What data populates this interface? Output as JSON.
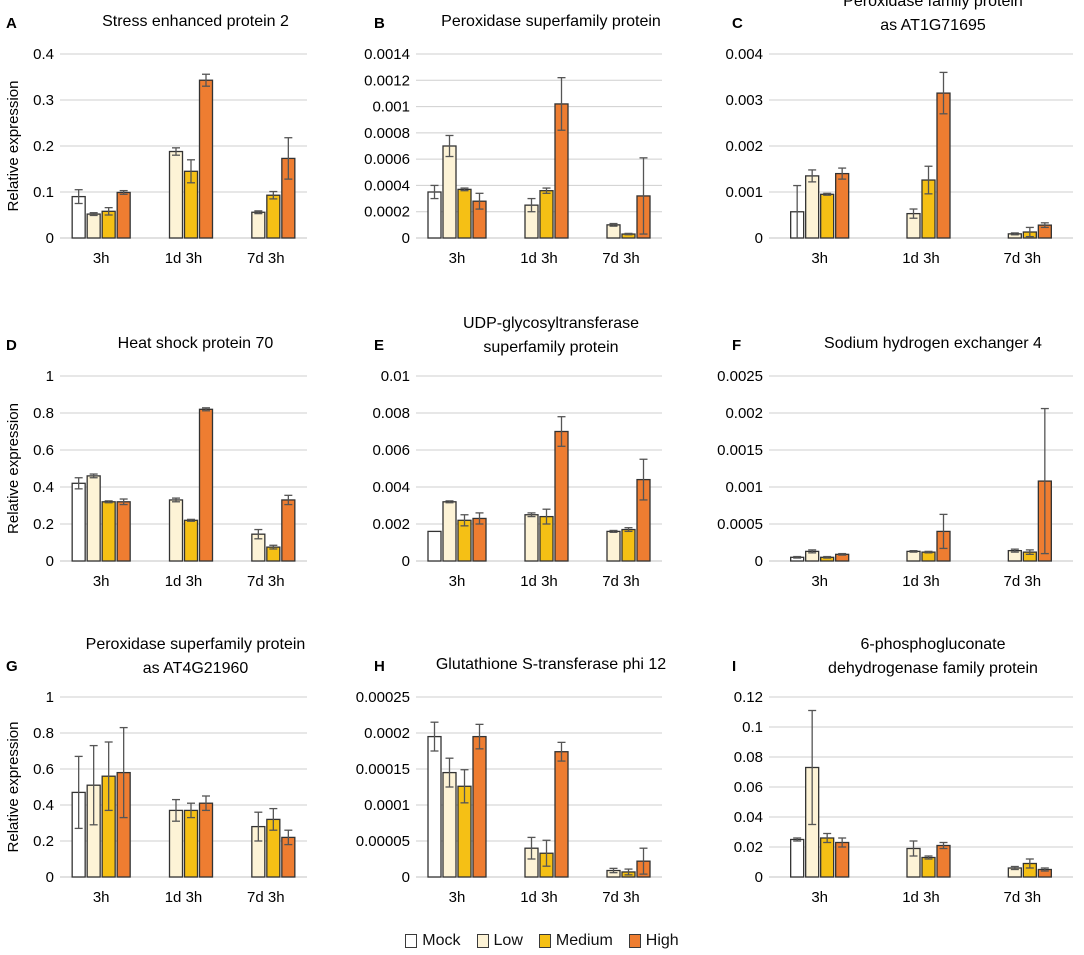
{
  "series_styles": [
    {
      "name": "Mock",
      "color": "#ffffff"
    },
    {
      "name": "Low",
      "color": "#fdf3d6"
    },
    {
      "name": "Medium",
      "color": "#f5c015"
    },
    {
      "name": "High",
      "color": "#ee7d31"
    }
  ],
  "axis_color": "#cfcfcf",
  "bar_stroke": "#333333",
  "legend": [
    "Mock",
    "Low",
    "Medium",
    "High"
  ],
  "chart_data": [
    {
      "type": "bar",
      "letter": "A",
      "title": [
        "Stress enhanced protein 2"
      ],
      "ylabel": "Relative expression",
      "categories": [
        "3h",
        "1d 3h",
        "7d 3h"
      ],
      "yticks": [
        "0",
        "0.1",
        "0.2",
        "0.3",
        "0.4"
      ],
      "ylim": [
        0,
        0.4
      ],
      "series": [
        {
          "name": "Mock",
          "values": [
            0.09,
            null,
            null
          ],
          "errors": [
            0.015,
            null,
            null
          ]
        },
        {
          "name": "Low",
          "values": [
            0.052,
            0.188,
            0.056
          ],
          "errors": [
            0.003,
            0.008,
            0.003
          ]
        },
        {
          "name": "Medium",
          "values": [
            0.058,
            0.145,
            0.093
          ],
          "errors": [
            0.008,
            0.025,
            0.008
          ]
        },
        {
          "name": "High",
          "values": [
            0.099,
            0.343,
            0.173
          ],
          "errors": [
            0.004,
            0.013,
            0.045
          ]
        }
      ]
    },
    {
      "type": "bar",
      "letter": "B",
      "title": [
        "Peroxidase superfamily protein"
      ],
      "ylabel": "",
      "categories": [
        "3h",
        "1d 3h",
        "7d 3h"
      ],
      "yticks": [
        "0",
        "0.0002",
        "0.0004",
        "0.0006",
        "0.0008",
        "0.001",
        "0.0012",
        "0.0014"
      ],
      "ylim": [
        0,
        0.0014
      ],
      "series": [
        {
          "name": "Mock",
          "values": [
            0.00035,
            null,
            null
          ],
          "errors": [
            5e-05,
            null,
            null
          ]
        },
        {
          "name": "Low",
          "values": [
            0.0007,
            0.00025,
            0.0001
          ],
          "errors": [
            8e-05,
            5e-05,
            1e-05
          ]
        },
        {
          "name": "Medium",
          "values": [
            0.00037,
            0.00036,
            3e-05
          ],
          "errors": [
            1e-05,
            2e-05,
            5e-06
          ]
        },
        {
          "name": "High",
          "values": [
            0.00028,
            0.00102,
            0.00032
          ],
          "errors": [
            6e-05,
            0.0002,
            0.00029
          ]
        }
      ]
    },
    {
      "type": "bar",
      "letter": "C",
      "title": [
        "Peroxidase family protein",
        "as AT1G71695"
      ],
      "ylabel": "",
      "categories": [
        "3h",
        "1d 3h",
        "7d 3h"
      ],
      "yticks": [
        "0",
        "0.001",
        "0.002",
        "0.003",
        "0.004"
      ],
      "ylim": [
        0,
        0.004
      ],
      "series": [
        {
          "name": "Mock",
          "values": [
            0.00057,
            null,
            null
          ],
          "errors": [
            0.00057,
            null,
            null
          ]
        },
        {
          "name": "Low",
          "values": [
            0.00135,
            0.00053,
            9e-05
          ],
          "errors": [
            0.00013,
            0.0001,
            2e-05
          ]
        },
        {
          "name": "Medium",
          "values": [
            0.00095,
            0.00126,
            0.00013
          ],
          "errors": [
            2e-05,
            0.0003,
            0.0001
          ]
        },
        {
          "name": "High",
          "values": [
            0.0014,
            0.00315,
            0.00028
          ],
          "errors": [
            0.00012,
            0.00045,
            5e-05
          ]
        }
      ]
    },
    {
      "type": "bar",
      "letter": "D",
      "title": [
        "Heat shock protein 70"
      ],
      "ylabel": "Relative expression",
      "categories": [
        "3h",
        "1d 3h",
        "7d 3h"
      ],
      "yticks": [
        "0",
        "0.2",
        "0.4",
        "0.6",
        "0.8",
        "1"
      ],
      "ylim": [
        0,
        1
      ],
      "series": [
        {
          "name": "Mock",
          "values": [
            0.42,
            null,
            null
          ],
          "errors": [
            0.03,
            null,
            null
          ]
        },
        {
          "name": "Low",
          "values": [
            0.46,
            0.33,
            0.145
          ],
          "errors": [
            0.01,
            0.01,
            0.025
          ]
        },
        {
          "name": "Medium",
          "values": [
            0.32,
            0.22,
            0.075
          ],
          "errors": [
            0.005,
            0.005,
            0.01
          ]
        },
        {
          "name": "High",
          "values": [
            0.32,
            0.82,
            0.33
          ],
          "errors": [
            0.015,
            0.008,
            0.025
          ]
        }
      ]
    },
    {
      "type": "bar",
      "letter": "E",
      "title": [
        "UDP-glycosyltransferase",
        "superfamily protein"
      ],
      "ylabel": "",
      "categories": [
        "3h",
        "1d 3h",
        "7d 3h"
      ],
      "yticks": [
        "0",
        "0.002",
        "0.004",
        "0.006",
        "0.008",
        "0.01"
      ],
      "ylim": [
        0,
        0.01
      ],
      "series": [
        {
          "name": "Mock",
          "values": [
            0.0016,
            null,
            null
          ],
          "errors": [
            0,
            null,
            null
          ]
        },
        {
          "name": "Low",
          "values": [
            0.0032,
            0.0025,
            0.0016
          ],
          "errors": [
            5e-05,
            0.0001,
            5e-05
          ]
        },
        {
          "name": "Medium",
          "values": [
            0.0022,
            0.0024,
            0.0017
          ],
          "errors": [
            0.0003,
            0.0004,
            0.0001
          ]
        },
        {
          "name": "High",
          "values": [
            0.0023,
            0.007,
            0.0044
          ],
          "errors": [
            0.0003,
            0.0008,
            0.0011
          ]
        }
      ]
    },
    {
      "type": "bar",
      "letter": "F",
      "title": [
        "Sodium hydrogen exchanger 4"
      ],
      "ylabel": "",
      "categories": [
        "3h",
        "1d 3h",
        "7d 3h"
      ],
      "yticks": [
        "0",
        "0.0005",
        "0.001",
        "0.0015",
        "0.002",
        "0.0025"
      ],
      "ylim": [
        0,
        0.0025
      ],
      "series": [
        {
          "name": "Mock",
          "values": [
            5e-05,
            null,
            null
          ],
          "errors": [
            1e-05,
            null,
            null
          ]
        },
        {
          "name": "Low",
          "values": [
            0.00013,
            0.00013,
            0.00014
          ],
          "errors": [
            2e-05,
            1e-05,
            2e-05
          ]
        },
        {
          "name": "Medium",
          "values": [
            5e-05,
            0.00012,
            0.00012
          ],
          "errors": [
            1e-05,
            1e-05,
            3e-05
          ]
        },
        {
          "name": "High",
          "values": [
            9e-05,
            0.0004,
            0.00108
          ],
          "errors": [
            1e-05,
            0.00023,
            0.00098
          ]
        }
      ]
    },
    {
      "type": "bar",
      "letter": "G",
      "title": [
        "Peroxidase superfamily protein",
        "as AT4G21960"
      ],
      "ylabel": "Relative expression",
      "categories": [
        "3h",
        "1d 3h",
        "7d 3h"
      ],
      "yticks": [
        "0",
        "0.2",
        "0.4",
        "0.6",
        "0.8",
        "1"
      ],
      "ylim": [
        0,
        1
      ],
      "series": [
        {
          "name": "Mock",
          "values": [
            0.47,
            null,
            null
          ],
          "errors": [
            0.2,
            null,
            null
          ]
        },
        {
          "name": "Low",
          "values": [
            0.51,
            0.37,
            0.28
          ],
          "errors": [
            0.22,
            0.06,
            0.08
          ]
        },
        {
          "name": "Medium",
          "values": [
            0.56,
            0.37,
            0.32
          ],
          "errors": [
            0.19,
            0.04,
            0.06
          ]
        },
        {
          "name": "High",
          "values": [
            0.58,
            0.41,
            0.22
          ],
          "errors": [
            0.25,
            0.04,
            0.04
          ]
        }
      ]
    },
    {
      "type": "bar",
      "letter": "H",
      "title": [
        "Glutathione S-transferase phi 12"
      ],
      "ylabel": "",
      "categories": [
        "3h",
        "1d 3h",
        "7d 3h"
      ],
      "yticks": [
        "0",
        "0.00005",
        "0.0001",
        "0.00015",
        "0.0002",
        "0.00025"
      ],
      "ylim": [
        0,
        0.00025
      ],
      "series": [
        {
          "name": "Mock",
          "values": [
            0.000195,
            null,
            null
          ],
          "errors": [
            2e-05,
            null,
            null
          ]
        },
        {
          "name": "Low",
          "values": [
            0.000145,
            4e-05,
            9e-06
          ],
          "errors": [
            2e-05,
            1.5e-05,
            3e-06
          ]
        },
        {
          "name": "Medium",
          "values": [
            0.000126,
            3.3e-05,
            7e-06
          ],
          "errors": [
            2.3e-05,
            1.8e-05,
            4e-06
          ]
        },
        {
          "name": "High",
          "values": [
            0.000195,
            0.000174,
            2.2e-05
          ],
          "errors": [
            1.7e-05,
            1.3e-05,
            1.8e-05
          ]
        }
      ]
    },
    {
      "type": "bar",
      "letter": "I",
      "title": [
        "6-phosphogluconate",
        "dehydrogenase family protein"
      ],
      "ylabel": "",
      "categories": [
        "3h",
        "1d 3h",
        "7d 3h"
      ],
      "yticks": [
        "0",
        "0.02",
        "0.04",
        "0.06",
        "0.08",
        "0.1",
        "0.12"
      ],
      "ylim": [
        0,
        0.12
      ],
      "series": [
        {
          "name": "Mock",
          "values": [
            0.025,
            null,
            null
          ],
          "errors": [
            0.001,
            null,
            null
          ]
        },
        {
          "name": "Low",
          "values": [
            0.073,
            0.019,
            0.006
          ],
          "errors": [
            0.038,
            0.005,
            0.001
          ]
        },
        {
          "name": "Medium",
          "values": [
            0.026,
            0.013,
            0.009
          ],
          "errors": [
            0.003,
            0.001,
            0.003
          ]
        },
        {
          "name": "High",
          "values": [
            0.023,
            0.021,
            0.005
          ],
          "errors": [
            0.003,
            0.002,
            0.001
          ]
        }
      ]
    }
  ]
}
